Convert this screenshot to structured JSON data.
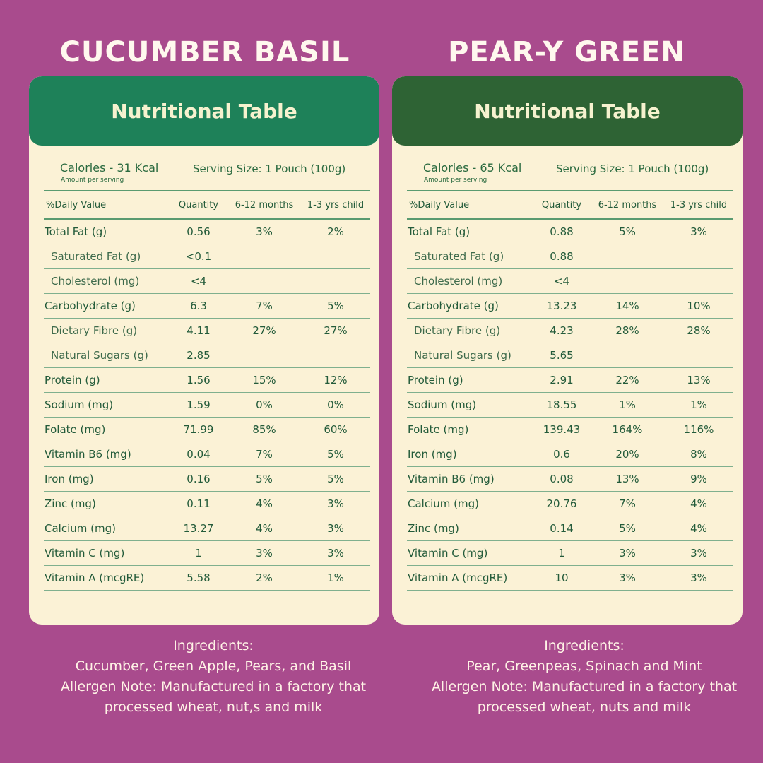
{
  "products": [
    {
      "name": "CUCUMBER BASIL",
      "table_title": "Nutritional Table",
      "calories": "Calories - 31 Kcal",
      "amount_note": "Amount per serving",
      "serving": "Serving Size: 1 Pouch (100g)",
      "headers": [
        "%Daily Value",
        "Quantity",
        "6-12 months",
        "1-3 yrs child"
      ],
      "rows": [
        {
          "name": "Total Fat (g)",
          "qty": "0.56",
          "m": "3%",
          "c": "2%",
          "sub": false
        },
        {
          "name": "Saturated Fat (g)",
          "qty": "<0.1",
          "m": "",
          "c": "",
          "sub": true
        },
        {
          "name": "Cholesterol (mg)",
          "qty": "<4",
          "m": "",
          "c": "",
          "sub": true
        },
        {
          "name": "Carbohydrate (g)",
          "qty": "6.3",
          "m": "7%",
          "c": "5%",
          "sub": false
        },
        {
          "name": "Dietary Fibre (g)",
          "qty": "4.11",
          "m": "27%",
          "c": "27%",
          "sub": true
        },
        {
          "name": "Natural Sugars (g)",
          "qty": "2.85",
          "m": "",
          "c": "",
          "sub": true
        },
        {
          "name": "Protein (g)",
          "qty": "1.56",
          "m": "15%",
          "c": "12%",
          "sub": false
        },
        {
          "name": "Sodium (mg)",
          "qty": "1.59",
          "m": "0%",
          "c": "0%",
          "sub": false
        },
        {
          "name": "Folate (mg)",
          "qty": "71.99",
          "m": "85%",
          "c": "60%",
          "sub": false
        },
        {
          "name": "Vitamin B6 (mg)",
          "qty": "0.04",
          "m": "7%",
          "c": "5%",
          "sub": false
        },
        {
          "name": "Iron (mg)",
          "qty": "0.16",
          "m": "5%",
          "c": "5%",
          "sub": false
        },
        {
          "name": "Zinc (mg)",
          "qty": "0.11",
          "m": "4%",
          "c": "3%",
          "sub": false
        },
        {
          "name": "Calcium (mg)",
          "qty": "13.27",
          "m": "4%",
          "c": "3%",
          "sub": false
        },
        {
          "name": "Vitamin C (mg)",
          "qty": "1",
          "m": "3%",
          "c": "3%",
          "sub": false
        },
        {
          "name": "Vitamin A (mcgRE)",
          "qty": "5.58",
          "m": "2%",
          "c": "1%",
          "sub": false
        }
      ],
      "ingredients_label": "Ingredients:",
      "ingredients": "Cucumber, Green Apple, Pears, and Basil",
      "allergen_1": "Allergen Note: Manufactured in a factory that",
      "allergen_2": "processed wheat, nut,s and milk"
    },
    {
      "name": "PEAR-Y GREEN",
      "table_title": "Nutritional Table",
      "calories": "Calories - 65 Kcal",
      "amount_note": "Amount per serving",
      "serving": "Serving Size: 1 Pouch (100g)",
      "headers": [
        "%Daily Value",
        "Quantity",
        "6-12 months",
        "1-3 yrs child"
      ],
      "rows": [
        {
          "name": "Total Fat (g)",
          "qty": "0.88",
          "m": "5%",
          "c": "3%",
          "sub": false
        },
        {
          "name": "Saturated Fat (g)",
          "qty": "0.88",
          "m": "",
          "c": "",
          "sub": true
        },
        {
          "name": "Cholesterol (mg)",
          "qty": "<4",
          "m": "",
          "c": "",
          "sub": true
        },
        {
          "name": "Carbohydrate (g)",
          "qty": "13.23",
          "m": "14%",
          "c": "10%",
          "sub": false
        },
        {
          "name": "Dietary Fibre (g)",
          "qty": "4.23",
          "m": "28%",
          "c": "28%",
          "sub": true
        },
        {
          "name": "Natural Sugars (g)",
          "qty": "5.65",
          "m": "",
          "c": "",
          "sub": true
        },
        {
          "name": "Protein (g)",
          "qty": "2.91",
          "m": "22%",
          "c": "13%",
          "sub": false
        },
        {
          "name": "Sodium (mg)",
          "qty": "18.55",
          "m": "1%",
          "c": "1%",
          "sub": false
        },
        {
          "name": "Folate (mg)",
          "qty": "139.43",
          "m": "164%",
          "c": "116%",
          "sub": false
        },
        {
          "name": "Iron (mg)",
          "qty": "0.6",
          "m": "20%",
          "c": "8%",
          "sub": false
        },
        {
          "name": "Vitamin B6 (mg)",
          "qty": "0.08",
          "m": "13%",
          "c": "9%",
          "sub": false
        },
        {
          "name": "Calcium (mg)",
          "qty": "20.76",
          "m": "7%",
          "c": "4%",
          "sub": false
        },
        {
          "name": "Zinc (mg)",
          "qty": "0.14",
          "m": "5%",
          "c": "4%",
          "sub": false
        },
        {
          "name": "Vitamin C (mg)",
          "qty": "1",
          "m": "3%",
          "c": "3%",
          "sub": false
        },
        {
          "name": "Vitamin A (mcgRE)",
          "qty": "10",
          "m": "3%",
          "c": "3%",
          "sub": false
        }
      ],
      "ingredients_label": "Ingredients:",
      "ingredients": "Pear, Greenpeas, Spinach and Mint",
      "allergen_1": "Allergen Note: Manufactured in a factory that",
      "allergen_2": "processed wheat, nuts and milk"
    }
  ],
  "colors": {
    "background": "#a94b8d",
    "card": "#fbf2d6",
    "header_left": "#1e8159",
    "header_right": "#2e6334",
    "text_green": "#235b3a"
  }
}
